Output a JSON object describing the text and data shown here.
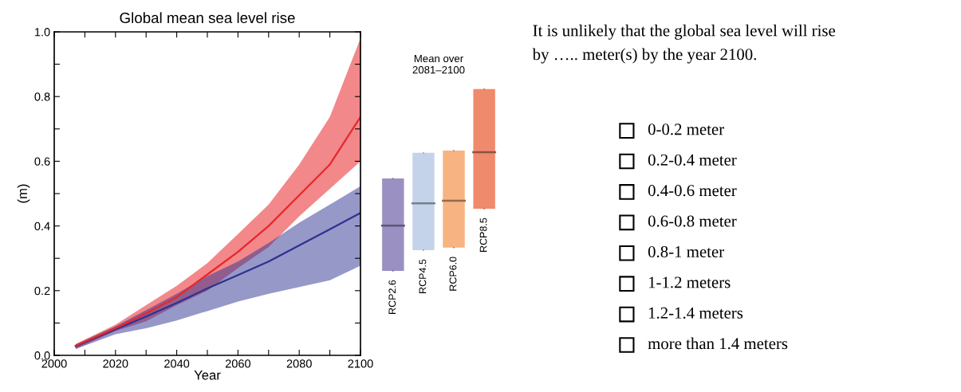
{
  "chart_data": [
    {
      "type": "line",
      "title": "Global mean sea level rise",
      "xlabel": "Year",
      "ylabel": "(m)",
      "xlim": [
        2000,
        2100
      ],
      "ylim": [
        0.0,
        1.0
      ],
      "xticks": [
        2000,
        {
          "value": 2010,
          "label": null
        },
        2020,
        {
          "value": 2030,
          "label": null
        },
        2040,
        {
          "value": 2050,
          "label": null
        },
        2060,
        {
          "value": 2070,
          "label": null
        },
        2080,
        {
          "value": 2090,
          "label": null
        },
        2100
      ],
      "yticks": [
        {
          "value": 0.0,
          "label": "0.0"
        },
        {
          "value": 0.1,
          "label": null
        },
        0.2,
        {
          "value": 0.3,
          "label": null
        },
        0.4,
        {
          "value": 0.5,
          "label": null
        },
        0.6,
        {
          "value": 0.7,
          "label": null
        },
        0.8,
        {
          "value": 0.9,
          "label": null
        },
        {
          "value": 1.0,
          "label": "1.0"
        }
      ],
      "x": [
        2007,
        2020,
        2030,
        2040,
        2050,
        2060,
        2070,
        2080,
        2090,
        2100
      ],
      "grid": false,
      "marker": "none",
      "line_style": "solid",
      "series": [
        {
          "color": "#2e3192",
          "values": [
            0.028,
            0.08,
            0.12,
            0.162,
            0.207,
            0.248,
            0.29,
            0.34,
            0.39,
            0.44
          ],
          "lower": [
            0.02,
            0.065,
            0.084,
            0.108,
            0.137,
            0.166,
            0.19,
            0.211,
            0.232,
            0.277
          ],
          "upper": [
            0.033,
            0.09,
            0.14,
            0.19,
            0.245,
            0.29,
            0.347,
            0.41,
            0.466,
            0.523
          ]
        },
        {
          "color": "#e8262a",
          "values": [
            0.03,
            0.084,
            0.13,
            0.18,
            0.25,
            0.32,
            0.4,
            0.495,
            0.59,
            0.737
          ],
          "lower": [
            0.02,
            0.075,
            0.105,
            0.155,
            0.2,
            0.27,
            0.335,
            0.43,
            0.515,
            0.6
          ],
          "upper": [
            0.035,
            0.095,
            0.155,
            0.215,
            0.285,
            0.375,
            0.466,
            0.59,
            0.737,
            0.98
          ]
        }
      ]
    },
    {
      "type": "box",
      "title": "Mean over\n2081–2100",
      "categories": [
        "RCP2.6",
        "RCP4.5",
        "RCP6.0",
        "RCP8.5"
      ],
      "ylim": [
        0.0,
        1.0
      ],
      "colors": [
        "#9b90c2",
        "#c5d3ea",
        "#f7b381",
        "#f08a6c"
      ],
      "boxes": [
        {
          "low": 0.261,
          "q1": 0.261,
          "median": 0.401,
          "q3": 0.547,
          "high": 0.547
        },
        {
          "low": 0.325,
          "q1": 0.325,
          "median": 0.47,
          "q3": 0.626,
          "high": 0.626
        },
        {
          "low": 0.333,
          "q1": 0.333,
          "median": 0.478,
          "q3": 0.633,
          "high": 0.633
        },
        {
          "low": 0.453,
          "q1": 0.453,
          "median": 0.628,
          "q3": 0.823,
          "high": 0.823
        }
      ]
    },
    {
      "type": "other",
      "title": "It is unlikely that the global sea level will rise\nby ….. meter(s) by the year 2100.",
      "annotations": [
        "0-0.2 meter",
        "0.2-0.4 meter",
        "0.4-0.6 meter",
        "0.6-0.8 meter",
        "0.8-1 meter",
        "1-1.2 meters",
        "1.2-1.4 meters",
        "more than 1.4 meters"
      ]
    }
  ]
}
